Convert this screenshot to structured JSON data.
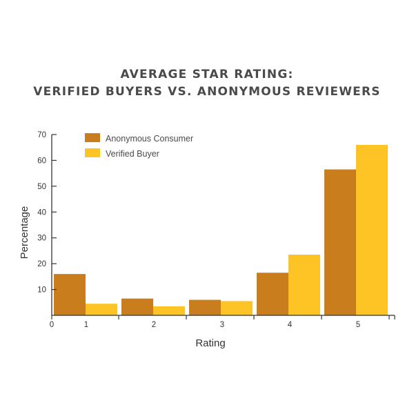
{
  "chart_data": {
    "type": "bar",
    "title_lines": [
      "AVERAGE STAR RATING:",
      "VERIFIED BUYERS VS. ANONYMOUS REVIEWERS"
    ],
    "xlabel": "Rating",
    "ylabel": "Percentage",
    "categories": [
      "1",
      "2",
      "3",
      "4",
      "5"
    ],
    "x_origin_label": "0",
    "ylim": [
      0,
      70
    ],
    "yticks": [
      10,
      20,
      30,
      40,
      50,
      60,
      70
    ],
    "legend_position": "top-left",
    "grid": false,
    "series": [
      {
        "name": "Anonymous Consumer",
        "color": "#c97d1c",
        "values": [
          16,
          6.5,
          6,
          16.5,
          56.5
        ]
      },
      {
        "name": "Verified Buyer",
        "color": "#fec425",
        "values": [
          4.5,
          3.5,
          5.5,
          23.5,
          66
        ]
      }
    ]
  }
}
